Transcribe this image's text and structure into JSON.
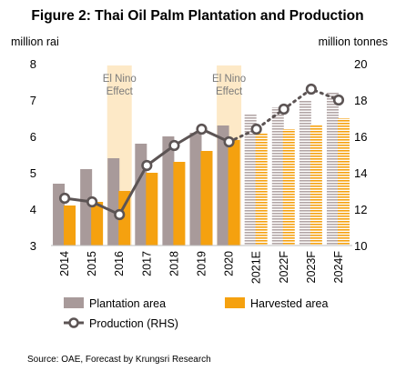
{
  "chart_data": {
    "type": "bar",
    "title": "Figure 2: Thai Oil Palm Plantation and Production",
    "ylabel_left": "million rai",
    "ylabel_right": "million tonnes",
    "categories": [
      "2014",
      "2015",
      "2016",
      "2017",
      "2018",
      "2019",
      "2020",
      "2021E",
      "2022F",
      "2023F",
      "2024F"
    ],
    "forecast_start_index": 7,
    "ylim_left": [
      3,
      8
    ],
    "yticks_left": [
      "3",
      "4",
      "5",
      "6",
      "7",
      "8"
    ],
    "ylim_right": [
      10,
      20
    ],
    "yticks_right": [
      "10",
      "12",
      "14",
      "16",
      "18",
      "20"
    ],
    "series": [
      {
        "name": "Plantation area",
        "axis": "left",
        "kind": "bar",
        "color": "#a89a9a",
        "values": [
          4.7,
          5.1,
          5.4,
          5.8,
          6.0,
          6.1,
          6.3,
          6.6,
          6.8,
          7.0,
          7.2
        ]
      },
      {
        "name": "Harvested area",
        "axis": "left",
        "kind": "bar",
        "color": "#f5a10f",
        "values": [
          4.1,
          4.2,
          4.5,
          5.0,
          5.3,
          5.6,
          5.9,
          6.1,
          6.2,
          6.3,
          6.5
        ]
      },
      {
        "name": "Production (RHS)",
        "axis": "right",
        "kind": "line",
        "color": "#5c5454",
        "values": [
          12.6,
          12.4,
          11.7,
          14.4,
          15.5,
          16.4,
          15.7,
          16.4,
          17.5,
          18.6,
          18.0
        ]
      }
    ],
    "annotations": [
      {
        "category": "2016",
        "lines": [
          "El Nino",
          "Effect"
        ],
        "color": "#fde9c7"
      },
      {
        "category": "2020",
        "lines": [
          "El Nino",
          "Effect"
        ],
        "color": "#fde9c7"
      }
    ],
    "legend_position": "bottom",
    "grid": false
  },
  "source": "Source: OAE, Forecast by Krungsri Research"
}
